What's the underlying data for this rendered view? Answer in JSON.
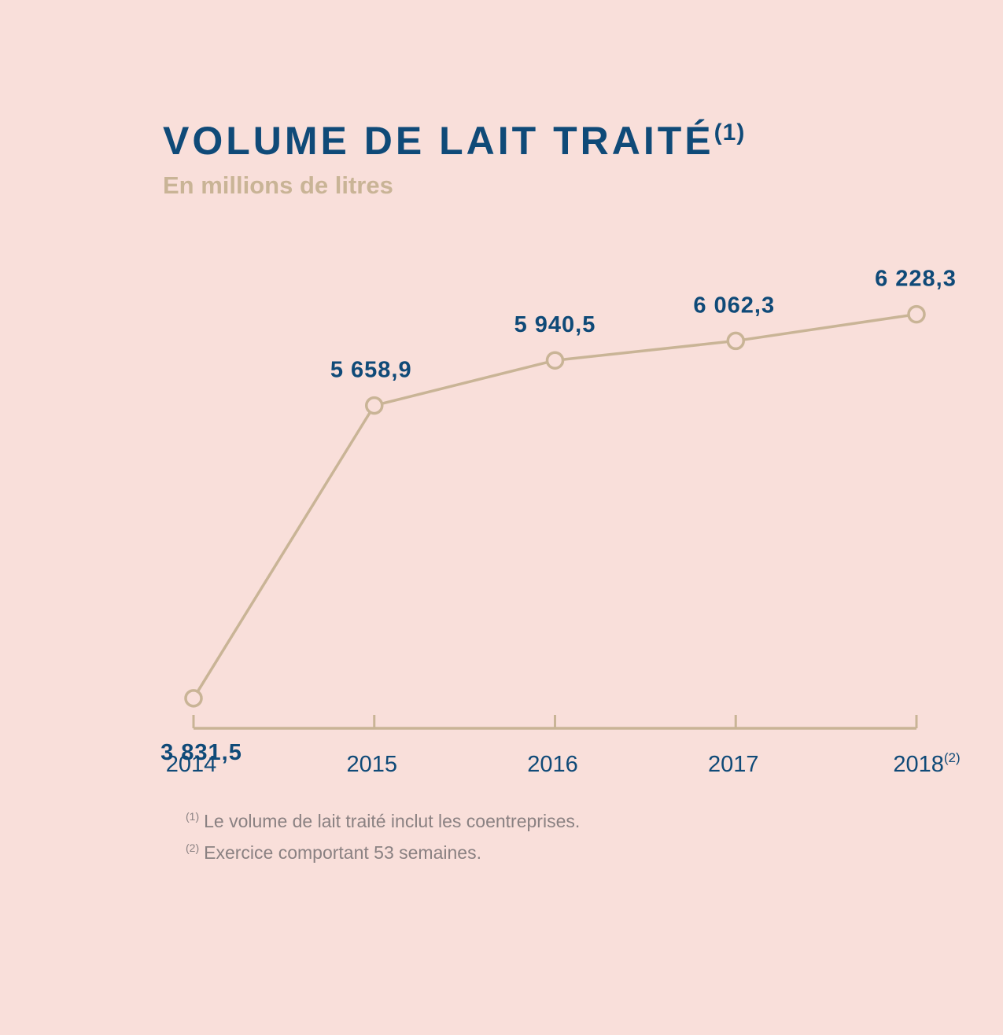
{
  "title": "VOLUME DE LAIT TRAITÉ",
  "title_note": "(1)",
  "subtitle": "En millions de litres",
  "colors": {
    "background": "#f9dfda",
    "accent": "#0f4a78",
    "line": "#c9b496",
    "footnote": "#8a8182"
  },
  "chart_data": {
    "type": "line",
    "title": "VOLUME DE LAIT TRAITÉ",
    "subtitle": "En millions de litres",
    "categories": [
      "2014",
      "2015",
      "2016",
      "2017",
      "2018"
    ],
    "category_notes": [
      "",
      "",
      "",
      "",
      "(2)"
    ],
    "values": [
      3831.5,
      5658.9,
      5940.5,
      6062.3,
      6228.3
    ],
    "value_labels": [
      "3 831,5",
      "5 658,9",
      "5 940,5",
      "6 062,3",
      "6 228,3"
    ],
    "label_positions": [
      "below",
      "above",
      "above",
      "above",
      "above"
    ],
    "ylim": [
      3600,
      6300
    ],
    "grid": false,
    "legend": "none",
    "markers": "hollow-circle"
  },
  "footnotes": [
    {
      "mark": "(1)",
      "text": "Le volume de lait traité inclut les coentreprises."
    },
    {
      "mark": "(2)",
      "text": "Exercice comportant 53 semaines."
    }
  ]
}
